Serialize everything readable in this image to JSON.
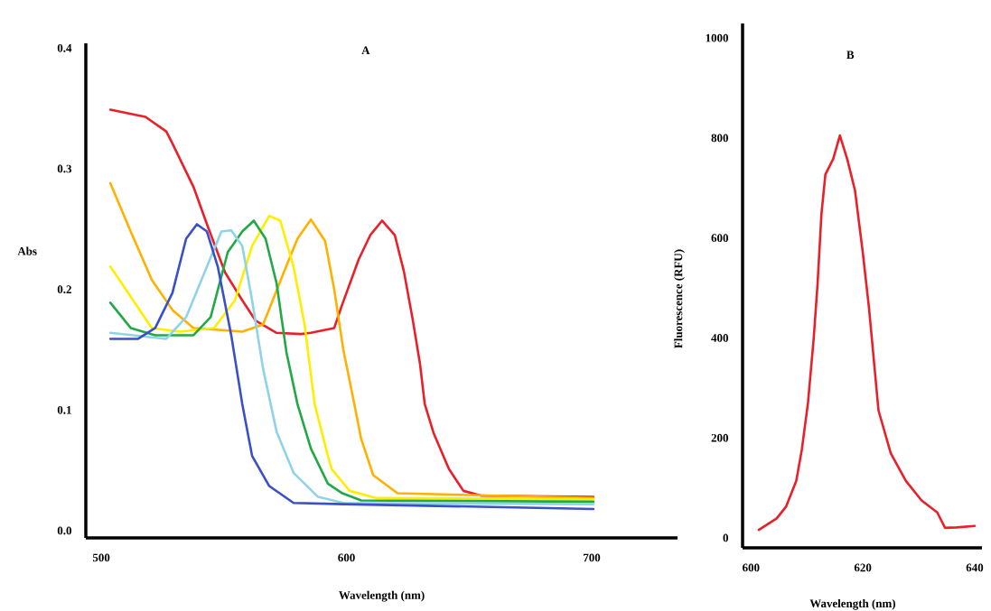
{
  "chart_data": [
    {
      "type": "line",
      "title": "A",
      "xlabel": "Wavelength (nm)",
      "ylabel": "Abs",
      "xlim": [
        493.7,
        735
      ],
      "ylim": [
        -0.006,
        0.404
      ],
      "xticks": [
        500,
        600,
        700
      ],
      "yticks": [
        {
          "value": 0,
          "label": "0.0"
        },
        0.1,
        0.2,
        0.3,
        0.4
      ],
      "series": [
        {
          "color": "#e8202a",
          "x": [
            503.7,
            518,
            526.5,
            529,
            537.6,
            543.1,
            550.5,
            557.5,
            563,
            571.5,
            581.4,
            585.5,
            595,
            598,
            605,
            609.7,
            614.5,
            619.7,
            623.4,
            627,
            630,
            631.9,
            635.5,
            641.8,
            647.7,
            655,
            700.7
          ],
          "values": [
            0.349,
            0.343,
            0.331,
            0.321,
            0.285,
            0.254,
            0.214,
            0.191,
            0.174,
            0.164,
            0.163,
            0.164,
            0.168,
            0.186,
            0.225,
            0.245,
            0.257,
            0.245,
            0.215,
            0.175,
            0.138,
            0.105,
            0.081,
            0.051,
            0.033,
            0.029,
            0.028
          ]
        },
        {
          "color": "#ffb000",
          "x": [
            503.7,
            512,
            520.6,
            529,
            537.6,
            557.5,
            566,
            574.4,
            580,
            585.5,
            591.3,
            595,
            598.7,
            602.4,
            606,
            610.9,
            620.8,
            700.7
          ],
          "values": [
            0.288,
            0.248,
            0.208,
            0.183,
            0.168,
            0.165,
            0.171,
            0.214,
            0.242,
            0.258,
            0.24,
            0.2,
            0.15,
            0.113,
            0.076,
            0.046,
            0.031,
            0.027
          ]
        },
        {
          "color": "#ffee00",
          "x": [
            503.7,
            512,
            520.6,
            532,
            546,
            554.5,
            561.5,
            568.5,
            573,
            578.4,
            582.9,
            587,
            592.4,
            594,
            601.3,
            612.3,
            700.7
          ],
          "values": [
            0.219,
            0.194,
            0.168,
            0.165,
            0.168,
            0.191,
            0.236,
            0.261,
            0.257,
            0.219,
            0.171,
            0.105,
            0.062,
            0.051,
            0.033,
            0.027,
            0.026
          ]
        },
        {
          "color": "#22a845",
          "x": [
            503.7,
            512,
            522,
            537.6,
            544.6,
            551.6,
            557.5,
            562.2,
            567,
            571.5,
            575.5,
            580,
            585.5,
            592.4,
            598.3,
            606,
            700.7
          ],
          "values": [
            0.189,
            0.168,
            0.162,
            0.162,
            0.177,
            0.231,
            0.248,
            0.257,
            0.242,
            0.205,
            0.148,
            0.105,
            0.068,
            0.039,
            0.031,
            0.025,
            0.024
          ]
        },
        {
          "color": "#8fd3e8",
          "x": [
            503.7,
            526.5,
            534.6,
            543.1,
            549,
            553,
            557.5,
            561.5,
            566,
            571.5,
            578.4,
            588.4,
            598.7,
            700.7
          ],
          "values": [
            0.164,
            0.159,
            0.177,
            0.219,
            0.248,
            0.249,
            0.236,
            0.191,
            0.134,
            0.082,
            0.048,
            0.028,
            0.023,
            0.022
          ]
        },
        {
          "color": "#3a4fc8",
          "x": [
            503.7,
            515,
            522,
            529,
            534.6,
            539,
            543.1,
            547.5,
            553,
            557.5,
            561.5,
            568.5,
            578.4,
            598.7,
            700.7
          ],
          "values": [
            0.159,
            0.159,
            0.168,
            0.197,
            0.242,
            0.254,
            0.248,
            0.219,
            0.162,
            0.105,
            0.062,
            0.037,
            0.023,
            0.022,
            0.018
          ]
        }
      ]
    },
    {
      "type": "line",
      "title": "B",
      "xlabel": "Wavelength (nm)",
      "ylabel": "Fluorescence (RFU)",
      "xlim": [
        598.5,
        641.3
      ],
      "ylim": [
        -20,
        1029
      ],
      "xticks": [
        600,
        620,
        640
      ],
      "yticks": [
        0,
        200,
        400,
        600,
        800,
        1000
      ],
      "series": [
        {
          "color": "#e8202a",
          "x": [
            601.4,
            604.6,
            606.3,
            608.1,
            609.1,
            610.2,
            611.2,
            611.9,
            612.6,
            613.3,
            614.7,
            615.9,
            617.2,
            618.6,
            620.0,
            621.1,
            622.8,
            625.0,
            627.7,
            630.5,
            633.3,
            634.7,
            636.8,
            640
          ],
          "values": [
            16,
            39,
            63,
            114,
            177,
            271,
            397,
            507,
            648,
            727,
            758,
            805,
            758,
            695,
            570,
            460,
            255,
            169,
            114,
            75,
            51,
            20,
            21,
            24
          ]
        }
      ]
    }
  ]
}
